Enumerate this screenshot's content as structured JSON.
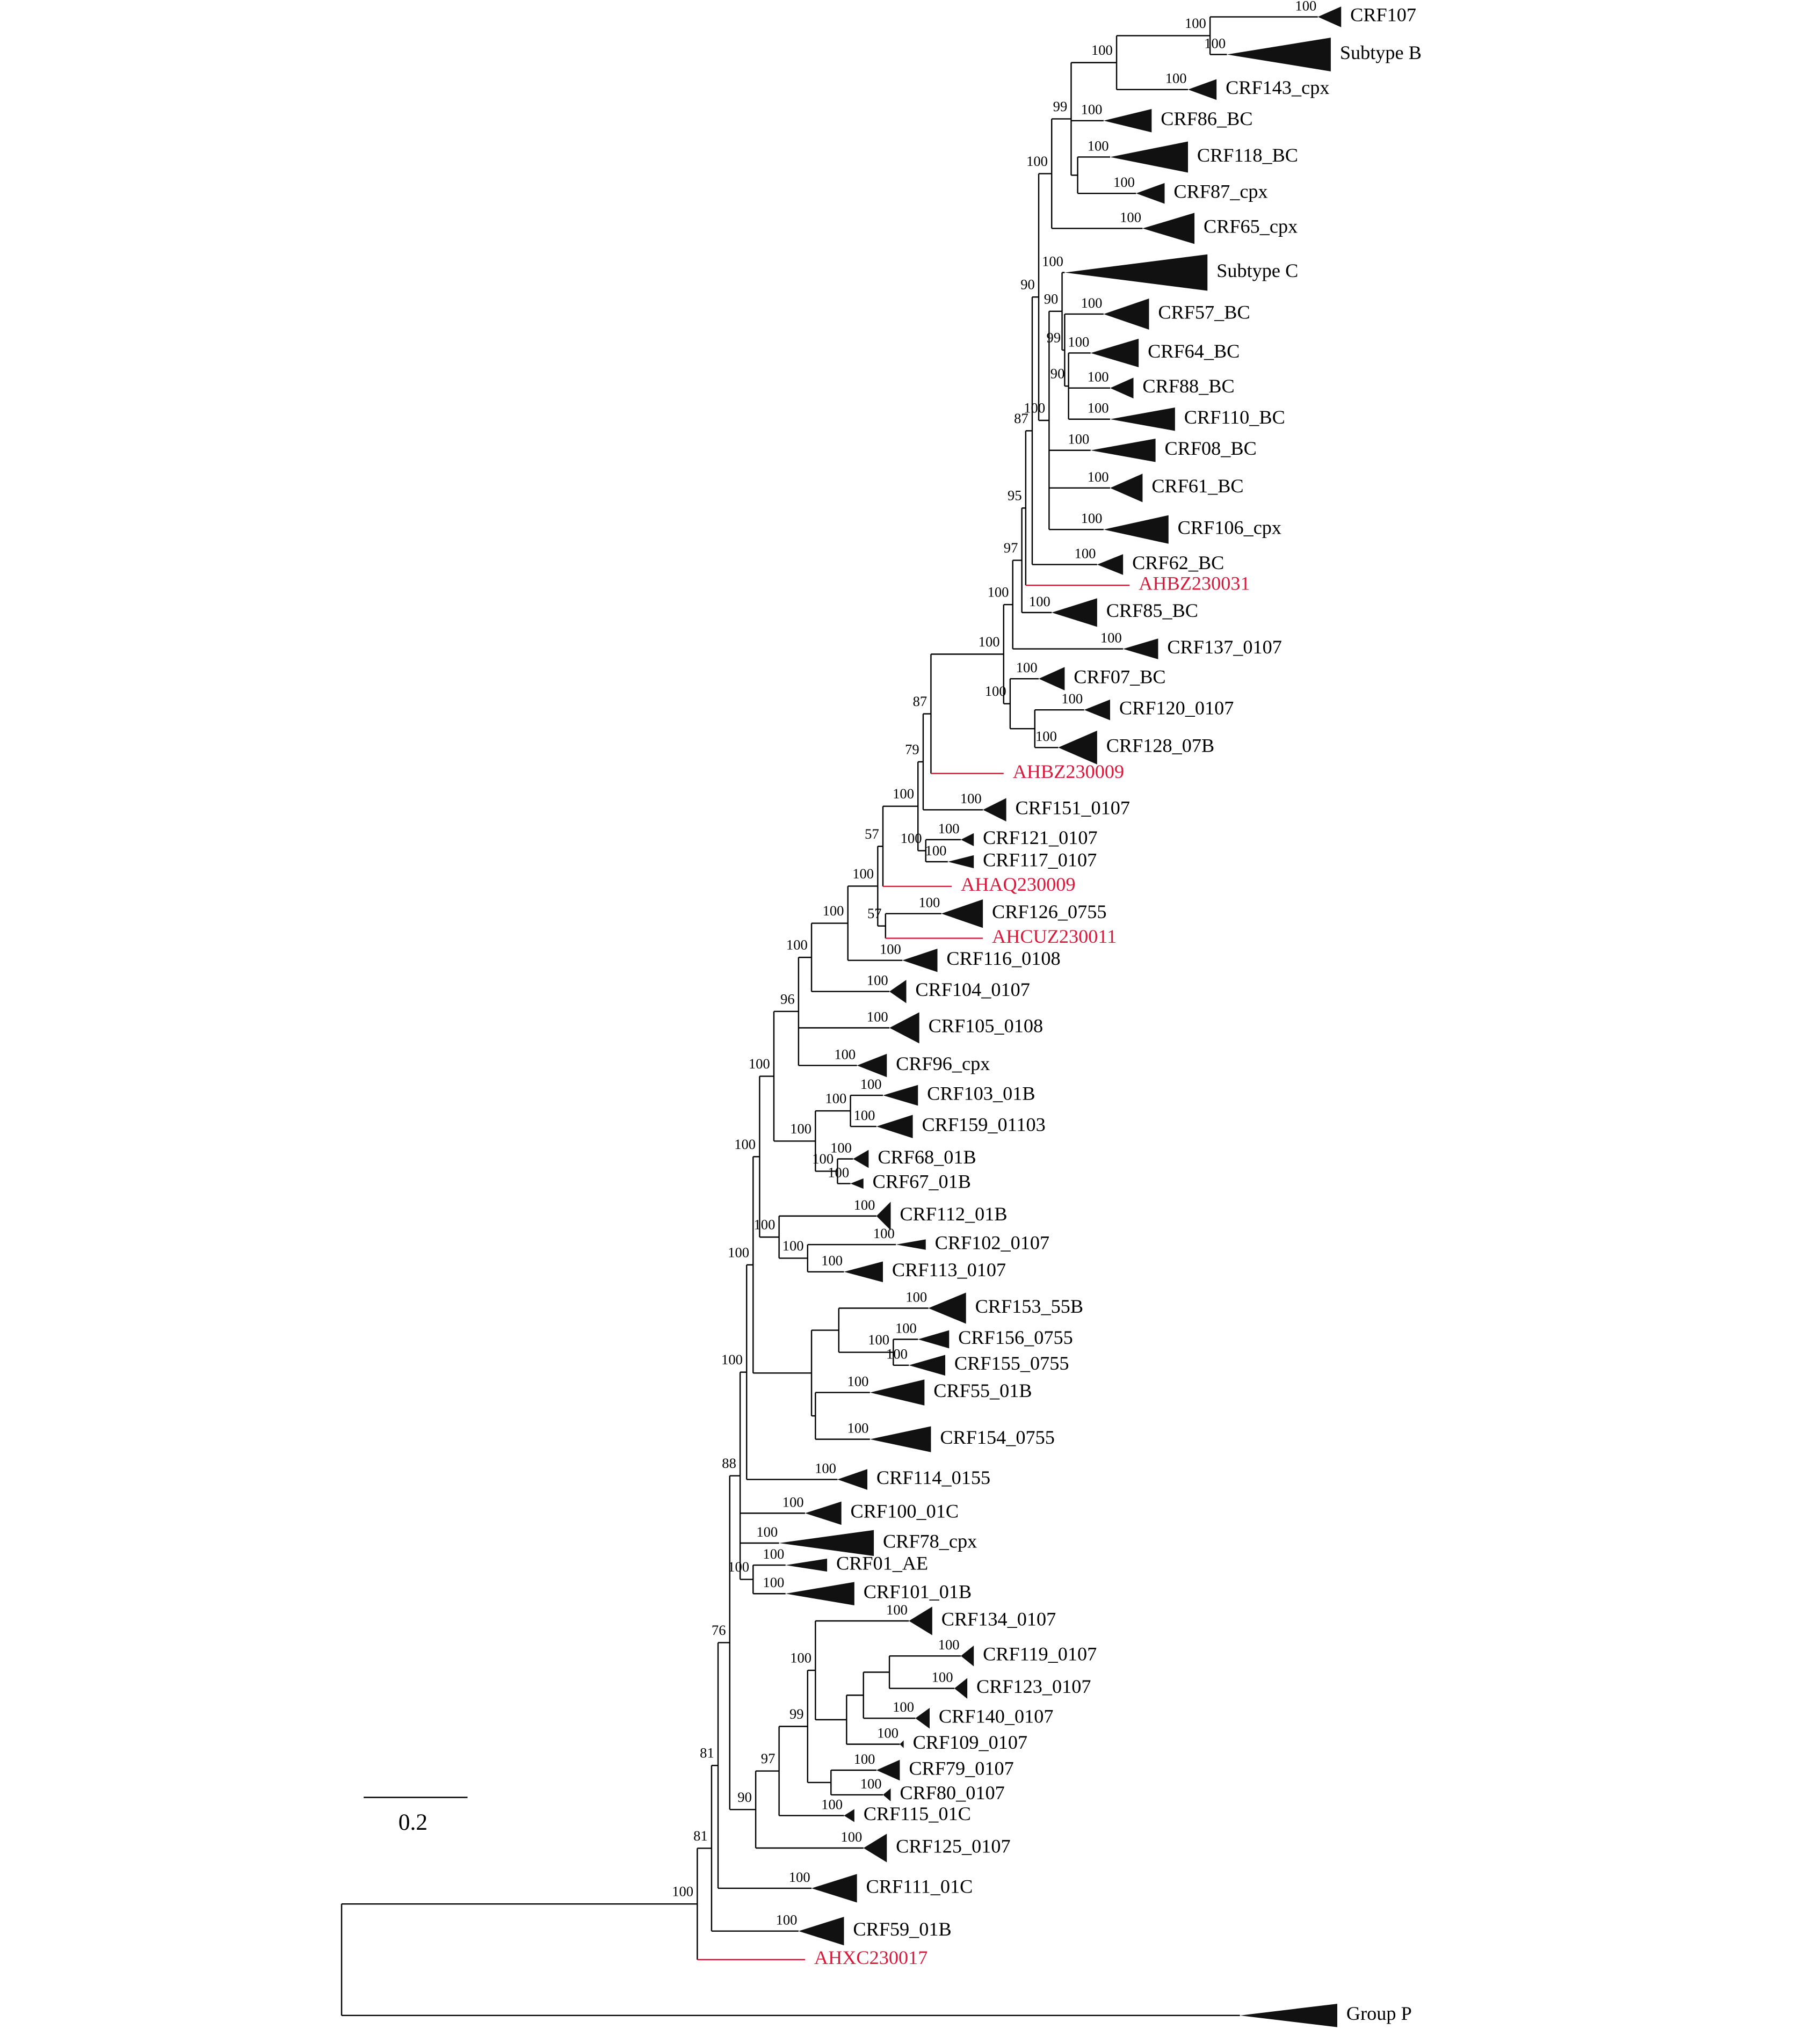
{
  "taxa": [
    {
      "label": "CRF107",
      "support": 100
    },
    {
      "label": "Subtype B",
      "support": 100
    },
    {
      "label": "CRF143_cpx",
      "support": 100
    },
    {
      "label": "CRF86_BC",
      "support": 100
    },
    {
      "label": "CRF118_BC",
      "support": 100
    },
    {
      "label": "CRF87_cpx",
      "support": 100
    },
    {
      "label": "CRF65_cpx",
      "support": 100
    },
    {
      "label": "Subtype C",
      "support": 100
    },
    {
      "label": "CRF57_BC",
      "support": 100
    },
    {
      "label": "CRF64_BC",
      "support": 100
    },
    {
      "label": "CRF88_BC",
      "support": 100
    },
    {
      "label": "CRF110_BC",
      "support": 100
    },
    {
      "label": "CRF08_BC",
      "support": 100
    },
    {
      "label": "CRF61_BC",
      "support": 100
    },
    {
      "label": "CRF106_cpx",
      "support": 100
    },
    {
      "label": "CRF62_BC",
      "support": 100
    },
    {
      "label": "AHBZ230031",
      "color": "#d7193c"
    },
    {
      "label": "CRF85_BC",
      "support": 100
    },
    {
      "label": "CRF137_0107",
      "support": 100
    },
    {
      "label": "CRF07_BC",
      "support": 100
    },
    {
      "label": "CRF120_0107",
      "support": 100
    },
    {
      "label": "CRF128_07B",
      "support": 100
    },
    {
      "label": "AHBZ230009",
      "color": "#d7193c"
    },
    {
      "label": "CRF151_0107",
      "support": 100
    },
    {
      "label": "CRF121_0107",
      "support": 100
    },
    {
      "label": "CRF117_0107",
      "support": 100
    },
    {
      "label": "AHAQ230009",
      "color": "#d7193c"
    },
    {
      "label": "CRF126_0755",
      "support": 100
    },
    {
      "label": "AHCUZ230011",
      "color": "#d7193c"
    },
    {
      "label": "CRF116_0108",
      "support": 100
    },
    {
      "label": "CRF104_0107",
      "support": 100
    },
    {
      "label": "CRF105_0108",
      "support": 100
    },
    {
      "label": "CRF96_cpx",
      "support": 100
    },
    {
      "label": "CRF103_01B",
      "support": 100
    },
    {
      "label": "CRF159_01103",
      "support": 100
    },
    {
      "label": "CRF68_01B",
      "support": 100
    },
    {
      "label": "CRF67_01B",
      "support": 100
    },
    {
      "label": "CRF112_01B",
      "support": 100
    },
    {
      "label": "CRF102_0107",
      "support": 100
    },
    {
      "label": "CRF113_0107",
      "support": 100
    },
    {
      "label": "CRF153_55B",
      "support": 100
    },
    {
      "label": "CRF156_0755",
      "support": 100
    },
    {
      "label": "CRF155_0755",
      "support": 100
    },
    {
      "label": "CRF55_01B",
      "support": 100
    },
    {
      "label": "CRF154_0755",
      "support": 100
    },
    {
      "label": "CRF114_0155",
      "support": 100
    },
    {
      "label": "CRF100_01C",
      "support": 100
    },
    {
      "label": "CRF78_cpx",
      "support": 100
    },
    {
      "label": "CRF01_AE",
      "support": 100
    },
    {
      "label": "CRF101_01B",
      "support": 100
    },
    {
      "label": "CRF134_0107",
      "support": 100
    },
    {
      "label": "CRF119_0107",
      "support": 100
    },
    {
      "label": "CRF123_0107",
      "support": 100
    },
    {
      "label": "CRF140_0107",
      "support": 100
    },
    {
      "label": "CRF109_0107",
      "support": 100
    },
    {
      "label": "CRF79_0107",
      "support": 100
    },
    {
      "label": "CRF80_0107",
      "support": 100
    },
    {
      "label": "CRF115_01C",
      "support": 100
    },
    {
      "label": "CRF125_0107",
      "support": 100
    },
    {
      "label": "CRF111_01C",
      "support": 100
    },
    {
      "label": "CRF59_01B",
      "support": 100
    },
    {
      "label": "AHXC230017",
      "color": "#d7193c"
    },
    {
      "label": "Group P"
    }
  ],
  "node_supports": [
    100,
    81,
    81,
    76,
    88,
    100,
    100,
    100,
    100,
    96,
    100,
    100,
    100,
    57,
    57,
    100,
    79,
    87,
    100,
    100,
    100,
    100,
    97,
    95,
    87,
    90,
    100,
    99,
    100,
    100,
    100,
    90,
    99,
    90,
    100,
    100,
    100,
    100,
    100,
    100,
    100,
    90,
    97,
    99,
    100
  ],
  "scale_bar": {
    "label": 0.2
  }
}
